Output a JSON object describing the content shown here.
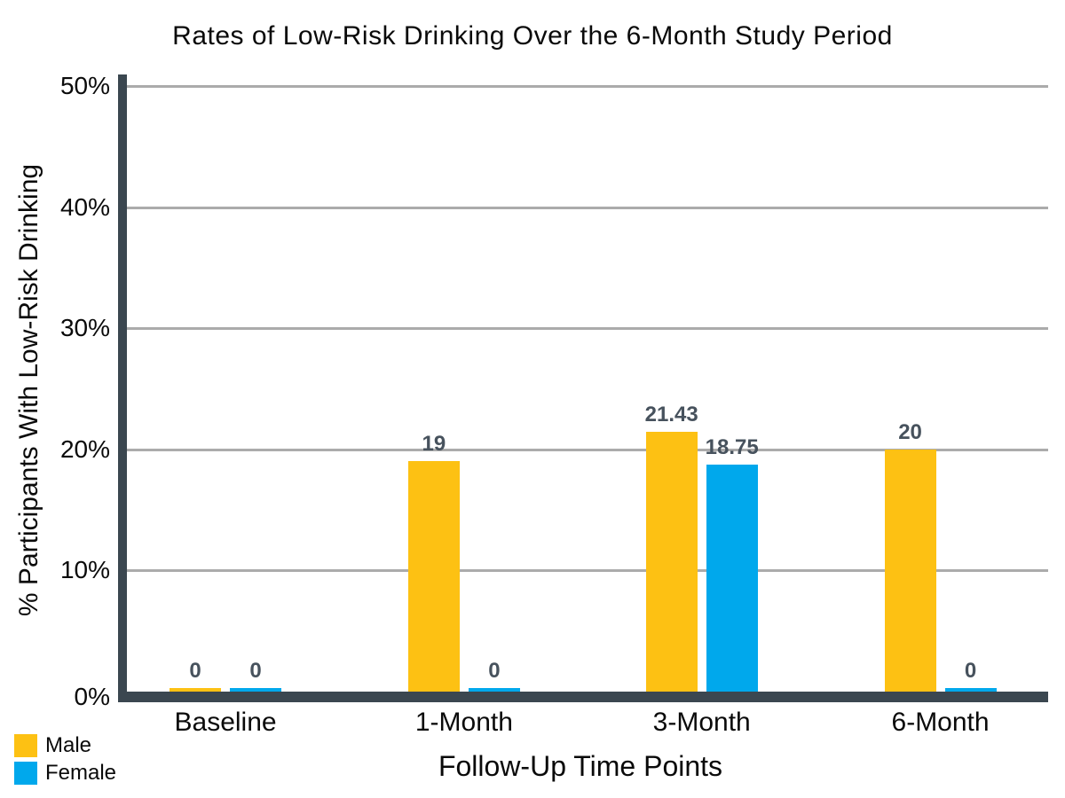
{
  "chart_data": {
    "type": "bar",
    "title": "Rates of Low-Risk Drinking Over the 6-Month Study Period",
    "xlabel": "Follow-Up Time Points",
    "ylabel": "% Participants With Low-Risk Drinking",
    "categories": [
      "Baseline",
      "1-Month",
      "3-Month",
      "6-Month"
    ],
    "series": [
      {
        "name": "Male",
        "color": "#FDC113",
        "values": [
          0,
          19,
          21.43,
          20
        ],
        "labels": [
          "0",
          "19",
          "21.43",
          "20"
        ]
      },
      {
        "name": "Female",
        "color": "#00A8EC",
        "values": [
          0,
          0,
          18.75,
          0
        ],
        "labels": [
          "0",
          "0",
          "18.75",
          "0"
        ]
      }
    ],
    "y_ticks": [
      "0%",
      "10%",
      "20%",
      "30%",
      "40%",
      "50%"
    ],
    "ylim": [
      0,
      50
    ],
    "grid": "horizontal-gridlines-at-10pct-steps",
    "legend_position": "bottom-left"
  },
  "palette": {
    "male_bar": "#FDC113",
    "female_bar": "#00A8EC",
    "axis": "#3B4750",
    "gridline": "#ABABAB",
    "bar_label": "#47525D",
    "text": "#0A0A0A",
    "background": "#FFFFFF"
  }
}
